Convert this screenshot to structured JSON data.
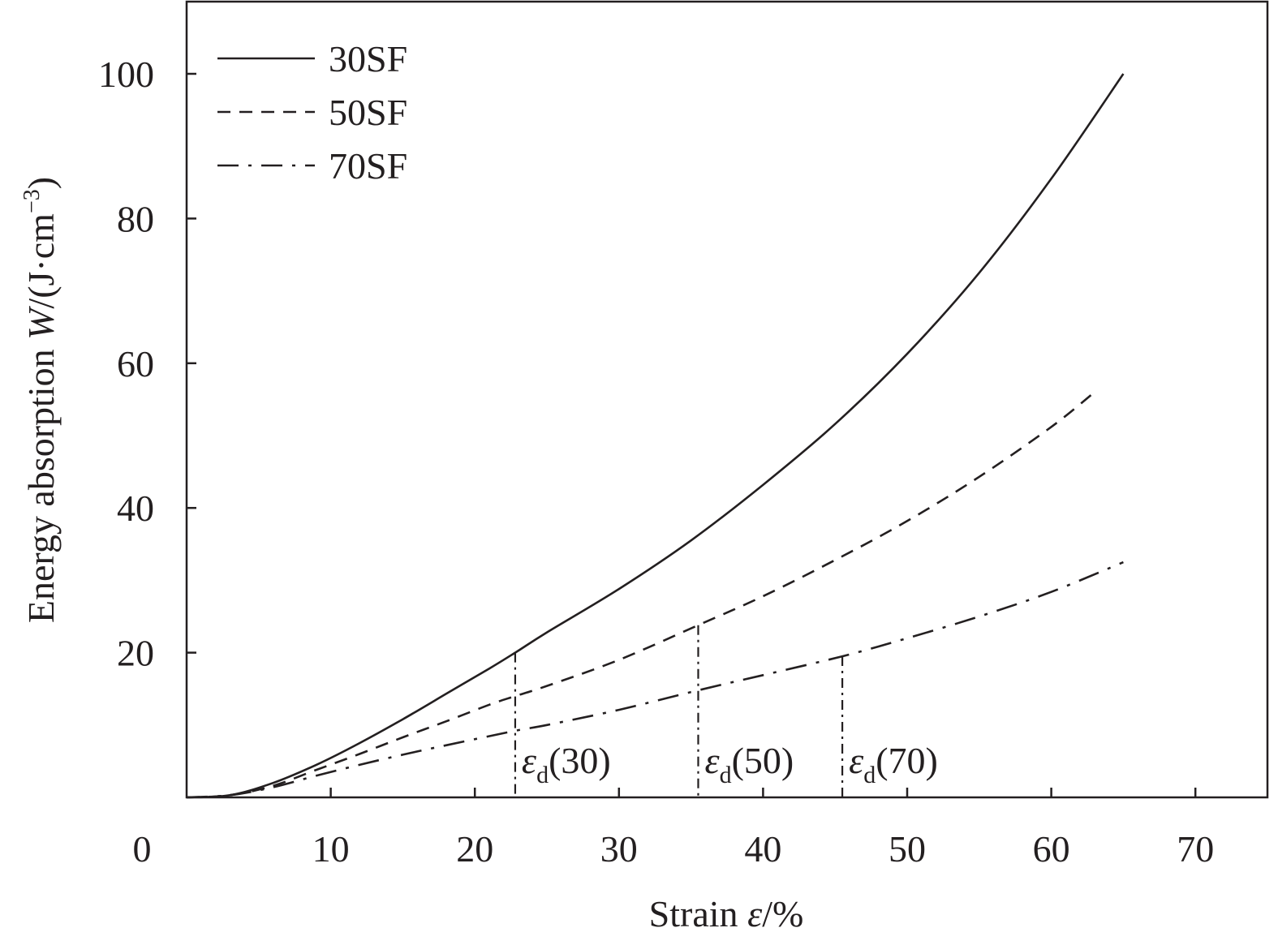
{
  "chart_data": {
    "type": "line",
    "xlabel_text": "Strain ",
    "xlabel_symbol": "ε",
    "xlabel_unit": "/%",
    "ylabel_text": "Energy absorption ",
    "ylabel_symbol": "W",
    "ylabel_unit": "/(J·cm",
    "ylabel_exp": "−3",
    "ylabel_close": ")",
    "xlim": [
      0,
      75
    ],
    "ylim": [
      0,
      100
    ],
    "x_ticks": [
      10,
      20,
      30,
      40,
      50,
      60,
      70
    ],
    "y_ticks": [
      20,
      40,
      60,
      80,
      100
    ],
    "origin_label": "0",
    "legend_position": "top-left",
    "series": [
      {
        "name": "30SF",
        "dash": "solid",
        "x": [
          0,
          3,
          6,
          9,
          12,
          15,
          18,
          21,
          22.8,
          25,
          30,
          35,
          40,
          45,
          50,
          55,
          60,
          65
        ],
        "y": [
          0,
          0.3,
          2.0,
          4.5,
          7.5,
          10.8,
          14.3,
          17.8,
          20.0,
          22.8,
          28.8,
          35.5,
          43.2,
          51.6,
          61.3,
          72.5,
          85.5,
          100.0
        ]
      },
      {
        "name": "50SF",
        "dash": "dashed",
        "x": [
          0,
          3,
          6,
          9,
          12,
          15,
          18,
          21,
          22.8,
          25,
          30,
          35.5,
          40,
          45,
          50,
          55,
          60,
          63
        ],
        "y": [
          0,
          0.3,
          1.6,
          3.8,
          6.0,
          8.3,
          10.5,
          12.8,
          14.0,
          15.4,
          19.0,
          23.8,
          27.8,
          32.8,
          38.2,
          44.3,
          51.2,
          56.0
        ]
      },
      {
        "name": "70SF",
        "dash": "dashdot",
        "x": [
          0,
          3,
          6,
          9,
          12,
          15,
          18,
          22.8,
          25,
          30,
          35.5,
          40,
          45.5,
          50,
          55,
          60,
          65
        ],
        "y": [
          0,
          0.3,
          1.4,
          3.0,
          4.5,
          5.9,
          7.2,
          9.2,
          10.0,
          12.1,
          14.8,
          16.9,
          19.5,
          22.0,
          25.0,
          28.4,
          32.5
        ]
      }
    ],
    "markers": [
      {
        "x": 22.8,
        "top": 20.0,
        "symbol": "ε",
        "sub": "d",
        "label": "(30)"
      },
      {
        "x": 35.5,
        "top": 23.8,
        "symbol": "ε",
        "sub": "d",
        "label": "(50)"
      },
      {
        "x": 45.5,
        "top": 19.5,
        "symbol": "ε",
        "sub": "d",
        "label": "(70)"
      }
    ]
  }
}
